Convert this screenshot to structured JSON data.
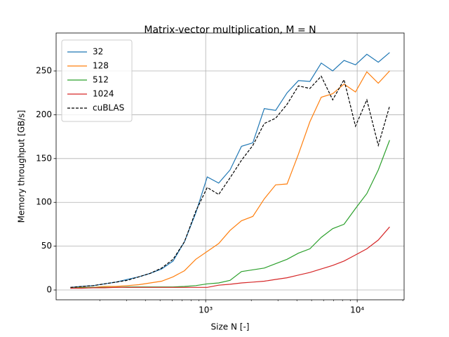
{
  "chart_data": {
    "type": "line",
    "title": "Matrix-vector multiplication, M = N",
    "x_label": "Size N [-]",
    "y_label": "Memory throughput [GB/s]",
    "x": [
      128,
      152,
      181,
      215,
      256,
      304,
      362,
      431,
      512,
      609,
      724,
      861,
      1024,
      1218,
      1448,
      1722,
      2048,
      2436,
      2896,
      3444,
      4096,
      4871,
      5793,
      6889,
      8192,
      9742,
      11585,
      13777,
      16384
    ],
    "series": [
      {
        "name": "32",
        "color": "#1f77b4",
        "dash": false,
        "values": [
          3,
          4,
          5,
          7,
          9,
          12,
          15,
          19,
          24,
          33,
          55,
          88,
          129,
          122,
          137,
          164,
          168,
          207,
          205,
          225,
          239,
          238,
          259,
          250,
          262,
          257,
          269,
          260,
          271
        ]
      },
      {
        "name": "128",
        "color": "#ff7f0e",
        "dash": false,
        "values": [
          2,
          3,
          3,
          4,
          4,
          5,
          6,
          8,
          10,
          15,
          22,
          35,
          44,
          53,
          68,
          79,
          84,
          104,
          120,
          121,
          155,
          192,
          220,
          224,
          235,
          226,
          249,
          236,
          250
        ]
      },
      {
        "name": "512",
        "color": "#2ca02c",
        "dash": false,
        "values": [
          2,
          2.5,
          3,
          3,
          3,
          3.5,
          3.5,
          3.5,
          3.5,
          3.5,
          4,
          5,
          7,
          8,
          11,
          21,
          23,
          25,
          30,
          35,
          42,
          47,
          60,
          70,
          75,
          93,
          110,
          137,
          171
        ]
      },
      {
        "name": "1024",
        "color": "#d62728",
        "dash": false,
        "values": [
          2,
          2,
          2.5,
          2.5,
          3,
          3,
          3,
          3,
          3,
          3,
          3,
          3,
          3,
          5.5,
          6.5,
          8,
          9,
          10,
          12,
          14,
          17,
          20,
          24,
          28,
          33,
          40,
          47,
          57,
          72
        ]
      },
      {
        "name": "cuBLAS",
        "color": "#000000",
        "dash": true,
        "values": [
          3,
          4,
          5,
          7,
          9,
          11,
          15,
          19,
          25,
          35,
          55,
          90,
          117,
          109,
          128,
          148,
          165,
          190,
          196,
          212,
          233,
          230,
          244,
          217,
          240,
          187,
          217,
          165,
          210
        ]
      }
    ],
    "xscale": "log",
    "xlim": [
      103,
      20400
    ],
    "xticks": [
      {
        "value": 1000,
        "label": "10³"
      },
      {
        "value": 10000,
        "label": "10⁴"
      }
    ],
    "xminorticks": [
      200,
      300,
      400,
      500,
      600,
      700,
      800,
      900,
      2000,
      3000,
      4000,
      5000,
      6000,
      7000,
      8000,
      9000,
      20000
    ],
    "ylim": [
      -11.2,
      293.3
    ],
    "yticks": [
      0,
      50,
      100,
      150,
      200,
      250
    ],
    "grid": true,
    "legend": "upper left"
  }
}
